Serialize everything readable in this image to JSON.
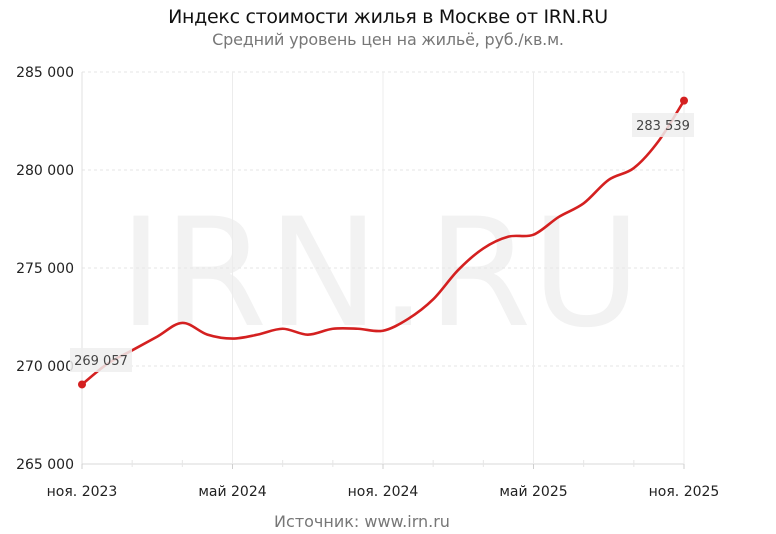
{
  "header": {
    "title": "Индекс стоимости жилья в Москве от IRN.RU",
    "subtitle": "Средний уровень цен на жильё, руб./кв.м."
  },
  "footer": {
    "source": "Источник:  www.irn.ru"
  },
  "watermark": "IRN.RU",
  "colors": {
    "line": "#d42020",
    "grid": "#e6e6e6",
    "label_bg": "#efefef"
  },
  "chart_data": {
    "type": "line",
    "title": "Индекс стоимости жилья в Москве от IRN.RU",
    "subtitle": "Средний уровень цен на жильё, руб./кв.м.",
    "xlabel": "",
    "ylabel": "",
    "ylim": [
      265000,
      285000
    ],
    "yticks": [
      "265 000",
      "270 000",
      "275 000",
      "280 000",
      "285 000"
    ],
    "xticks": [
      "ноя. 2023",
      "май 2024",
      "ноя. 2024",
      "май 2025",
      "ноя. 2025"
    ],
    "grid": true,
    "legend": null,
    "x": [
      "2023-11",
      "2023-12",
      "2024-01",
      "2024-02",
      "2024-03",
      "2024-04",
      "2024-05",
      "2024-06",
      "2024-07",
      "2024-08",
      "2024-09",
      "2024-10",
      "2024-11",
      "2024-12",
      "2025-01",
      "2025-02",
      "2025-03",
      "2025-04",
      "2025-05",
      "2025-06",
      "2025-07",
      "2025-08",
      "2025-09",
      "2025-10",
      "2025-11"
    ],
    "series": [
      {
        "name": "Средний уровень цен на жильё, руб./кв.м.",
        "values": [
          269057,
          270100,
          270800,
          271500,
          272200,
          271600,
          271400,
          271600,
          271900,
          271600,
          271900,
          271900,
          271800,
          272400,
          273400,
          274900,
          276000,
          276600,
          276700,
          277600,
          278300,
          279500,
          280100,
          281500,
          283539
        ]
      }
    ],
    "annotations": [
      {
        "x": "2023-11",
        "text": "269 057"
      },
      {
        "x": "2025-11",
        "text": "283 539"
      }
    ]
  }
}
